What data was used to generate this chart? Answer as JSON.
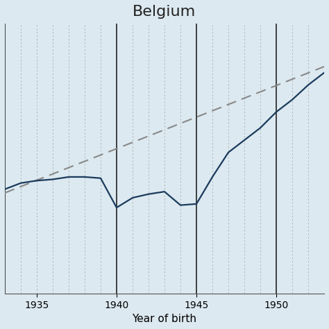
{
  "title": "Belgium",
  "xlabel": "Year of birth",
  "background_color": "#dce9f0",
  "line_color": "#1a3a5c",
  "trend_color": "#888888",
  "vline_color": "#111111",
  "grid_color": "#999999",
  "xlim": [
    1933,
    1953
  ],
  "ylim": [
    60,
    82
  ],
  "x_ticks": [
    1935,
    1940,
    1945,
    1950
  ],
  "vlines": [
    1933,
    1940,
    1945,
    1950
  ],
  "years": [
    1933,
    1934,
    1935,
    1936,
    1937,
    1938,
    1939,
    1940,
    1941,
    1942,
    1943,
    1944,
    1945,
    1946,
    1947,
    1948,
    1949,
    1950,
    1951,
    1952,
    1953
  ],
  "life_exp": [
    68.5,
    69.0,
    69.2,
    69.3,
    69.5,
    69.5,
    69.4,
    67.0,
    67.8,
    68.1,
    68.3,
    67.2,
    67.3,
    69.5,
    71.5,
    72.5,
    73.5,
    74.8,
    75.8,
    77.0,
    78.0
  ],
  "trend_x": [
    1933,
    1953
  ],
  "trend_y": [
    68.2,
    78.5
  ],
  "title_fontsize": 16,
  "label_fontsize": 11,
  "tick_fontsize": 10
}
